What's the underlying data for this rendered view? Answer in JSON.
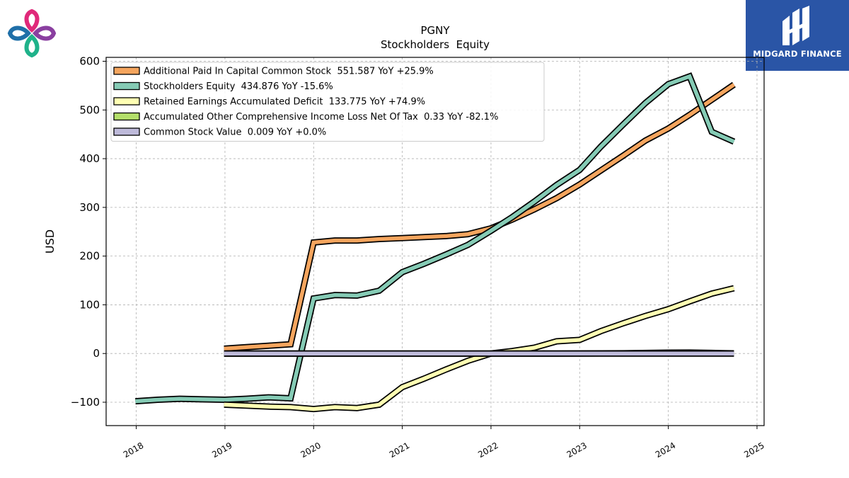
{
  "header": {
    "brand_text": "MIDGARD FINANCE"
  },
  "chart_data": {
    "type": "line",
    "title": "PGNY",
    "subtitle": "Stockholders  Equity",
    "ylabel": "USD",
    "xlabel": "",
    "xlim": [
      2017.66,
      2025.08
    ],
    "ylim": [
      -148,
      608
    ],
    "x_ticks": [
      "2018",
      "2019",
      "2020",
      "2021",
      "2022",
      "2023",
      "2024",
      "2025"
    ],
    "y_ticks": [
      "600",
      "500",
      "400",
      "300",
      "200",
      "100",
      "0",
      "−100"
    ],
    "y_tick_values": [
      600,
      500,
      400,
      300,
      200,
      100,
      0,
      -100
    ],
    "grid": true,
    "legend_position": "top-left",
    "series": [
      {
        "name": "Additional Paid In Capital Common Stock",
        "legend": "Additional Paid In Capital Common Stock  551.587 YoY +25.9%",
        "color": "#f5a55e",
        "x": [
          2018.99,
          2019.24,
          2019.49,
          2019.74,
          2020.0,
          2020.24,
          2020.49,
          2020.74,
          2021.0,
          2021.24,
          2021.49,
          2021.74,
          2022.0,
          2022.24,
          2022.49,
          2022.74,
          2023.0,
          2023.24,
          2023.49,
          2023.74,
          2024.0,
          2024.24,
          2024.49,
          2024.74
        ],
        "values": [
          10,
          13,
          16,
          19,
          228,
          232,
          232,
          235,
          237,
          239,
          241,
          245,
          257,
          275,
          296,
          319,
          347,
          376,
          406,
          437,
          462,
          490,
          521,
          552
        ]
      },
      {
        "name": "Stockholders Equity",
        "legend": "Stockholders Equity  434.876 YoY -15.6%",
        "color": "#85cbb5",
        "x": [
          2017.99,
          2018.24,
          2018.49,
          2018.74,
          2019.0,
          2019.24,
          2019.49,
          2019.74,
          2020.0,
          2020.24,
          2020.49,
          2020.74,
          2021.0,
          2021.24,
          2021.49,
          2021.74,
          2022.0,
          2022.24,
          2022.49,
          2022.74,
          2023.0,
          2023.24,
          2023.49,
          2023.74,
          2024.0,
          2024.24,
          2024.49,
          2024.74
        ],
        "values": [
          -98,
          -95,
          -93,
          -94,
          -95,
          -93,
          -90,
          -92,
          113,
          120,
          119,
          129,
          167,
          184,
          203,
          223,
          252,
          280,
          312,
          346,
          377,
          425,
          470,
          514,
          553,
          569,
          455,
          435
        ]
      },
      {
        "name": "Retained Earnings Accumulated Deficit",
        "legend": "Retained Earnings Accumulated Deficit  133.775 YoY +74.9%",
        "color": "#ffffb3",
        "x": [
          2018.99,
          2019.24,
          2019.49,
          2019.74,
          2020.0,
          2020.24,
          2020.49,
          2020.74,
          2021.0,
          2021.24,
          2021.49,
          2021.74,
          2022.0,
          2022.24,
          2022.49,
          2022.74,
          2023.0,
          2023.24,
          2023.49,
          2023.74,
          2024.0,
          2024.24,
          2024.49,
          2024.74
        ],
        "values": [
          -105,
          -107,
          -109,
          -110,
          -114,
          -110,
          -112,
          -105,
          -69,
          -52,
          -33,
          -15,
          0,
          5,
          12,
          25,
          28,
          46,
          62,
          77,
          91,
          107,
          123,
          134
        ]
      },
      {
        "name": "Accumulated Other Comprehensive Income Loss Net Of Tax",
        "legend": "Accumulated Other Comprehensive Income Loss Net Of Tax  0.33 YoY -82.1%",
        "color": "#b3de69",
        "x": [
          2018.99,
          2019.74,
          2020.49,
          2021.24,
          2021.99,
          2022.74,
          2023.49,
          2024.0,
          2024.24,
          2024.49,
          2024.74
        ],
        "values": [
          0,
          0,
          0,
          0,
          0,
          0,
          0.5,
          1.8,
          1.9,
          1.2,
          0.33
        ]
      },
      {
        "name": "Common Stock Value",
        "legend": "Common Stock Value  0.009 YoY +0.0%",
        "color": "#bebada",
        "x": [
          2018.99,
          2024.74
        ],
        "values": [
          0.009,
          0.009
        ]
      }
    ]
  }
}
